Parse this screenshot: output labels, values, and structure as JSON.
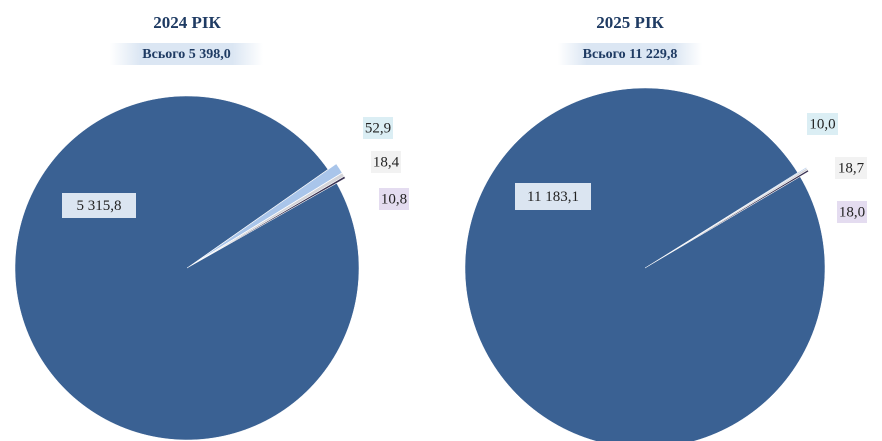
{
  "chart_data": [
    {
      "type": "pie",
      "title": "2024 РІК",
      "subtitle": "Всього 5 398,0",
      "values": [
        52.9,
        18.4,
        10.8,
        5315.8
      ],
      "value_labels": [
        "52,9",
        "18,4",
        "10,8",
        "5 315,8"
      ],
      "colors": [
        "#a9c5ea",
        "#d4d4d8",
        "#3b3454",
        "#3a6193"
      ]
    },
    {
      "type": "pie",
      "title": "2025 РІК",
      "subtitle": "Всього 11 229,8",
      "values": [
        10.0,
        18.7,
        18.0,
        11183.1
      ],
      "value_labels": [
        "10,0",
        "18,7",
        "18,0",
        "11 183,1"
      ],
      "colors": [
        "#a9c5ea",
        "#d4d4d8",
        "#3b3454",
        "#3a6193"
      ]
    }
  ]
}
